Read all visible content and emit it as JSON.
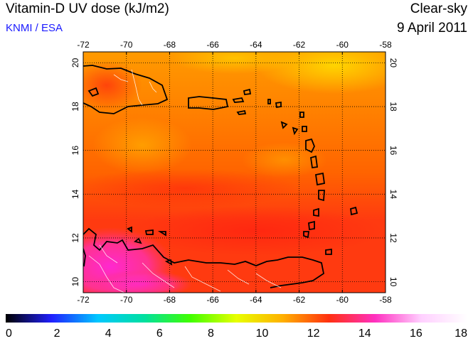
{
  "header": {
    "title": "Vitamin-D UV dose (kJ/m2)",
    "subtitle": "KNMI / ESA",
    "condition": "Clear-sky",
    "date": "9 April 2011"
  },
  "colors": {
    "subtitle": "#1a1aff",
    "field_orange": "#ff6a00",
    "field_red": "#ff2a10",
    "field_yellow": "#ffd000",
    "field_magenta": "#ff30c8",
    "coastline": "#000000",
    "borders": "#ffffff"
  },
  "map": {
    "lon_ticks": [
      "-72",
      "-70",
      "-68",
      "-66",
      "-64",
      "-62",
      "-60",
      "-58"
    ],
    "lat_ticks": [
      "10",
      "12",
      "14",
      "16",
      "18",
      "20"
    ],
    "lon_range": [
      -72,
      -58
    ],
    "lat_range": [
      9.5,
      20.5
    ],
    "grid": true
  },
  "colorbar": {
    "ticks": [
      "0",
      "2",
      "4",
      "6",
      "8",
      "10",
      "12",
      "14",
      "16",
      "18"
    ],
    "range": [
      0,
      18
    ],
    "stops": [
      "#000000",
      "#2020ff",
      "#00c8ff",
      "#00e0a0",
      "#40ff00",
      "#e8ff00",
      "#ffb000",
      "#ff3010",
      "#ff30c0",
      "#ffd0ff",
      "#ffffff"
    ]
  }
}
